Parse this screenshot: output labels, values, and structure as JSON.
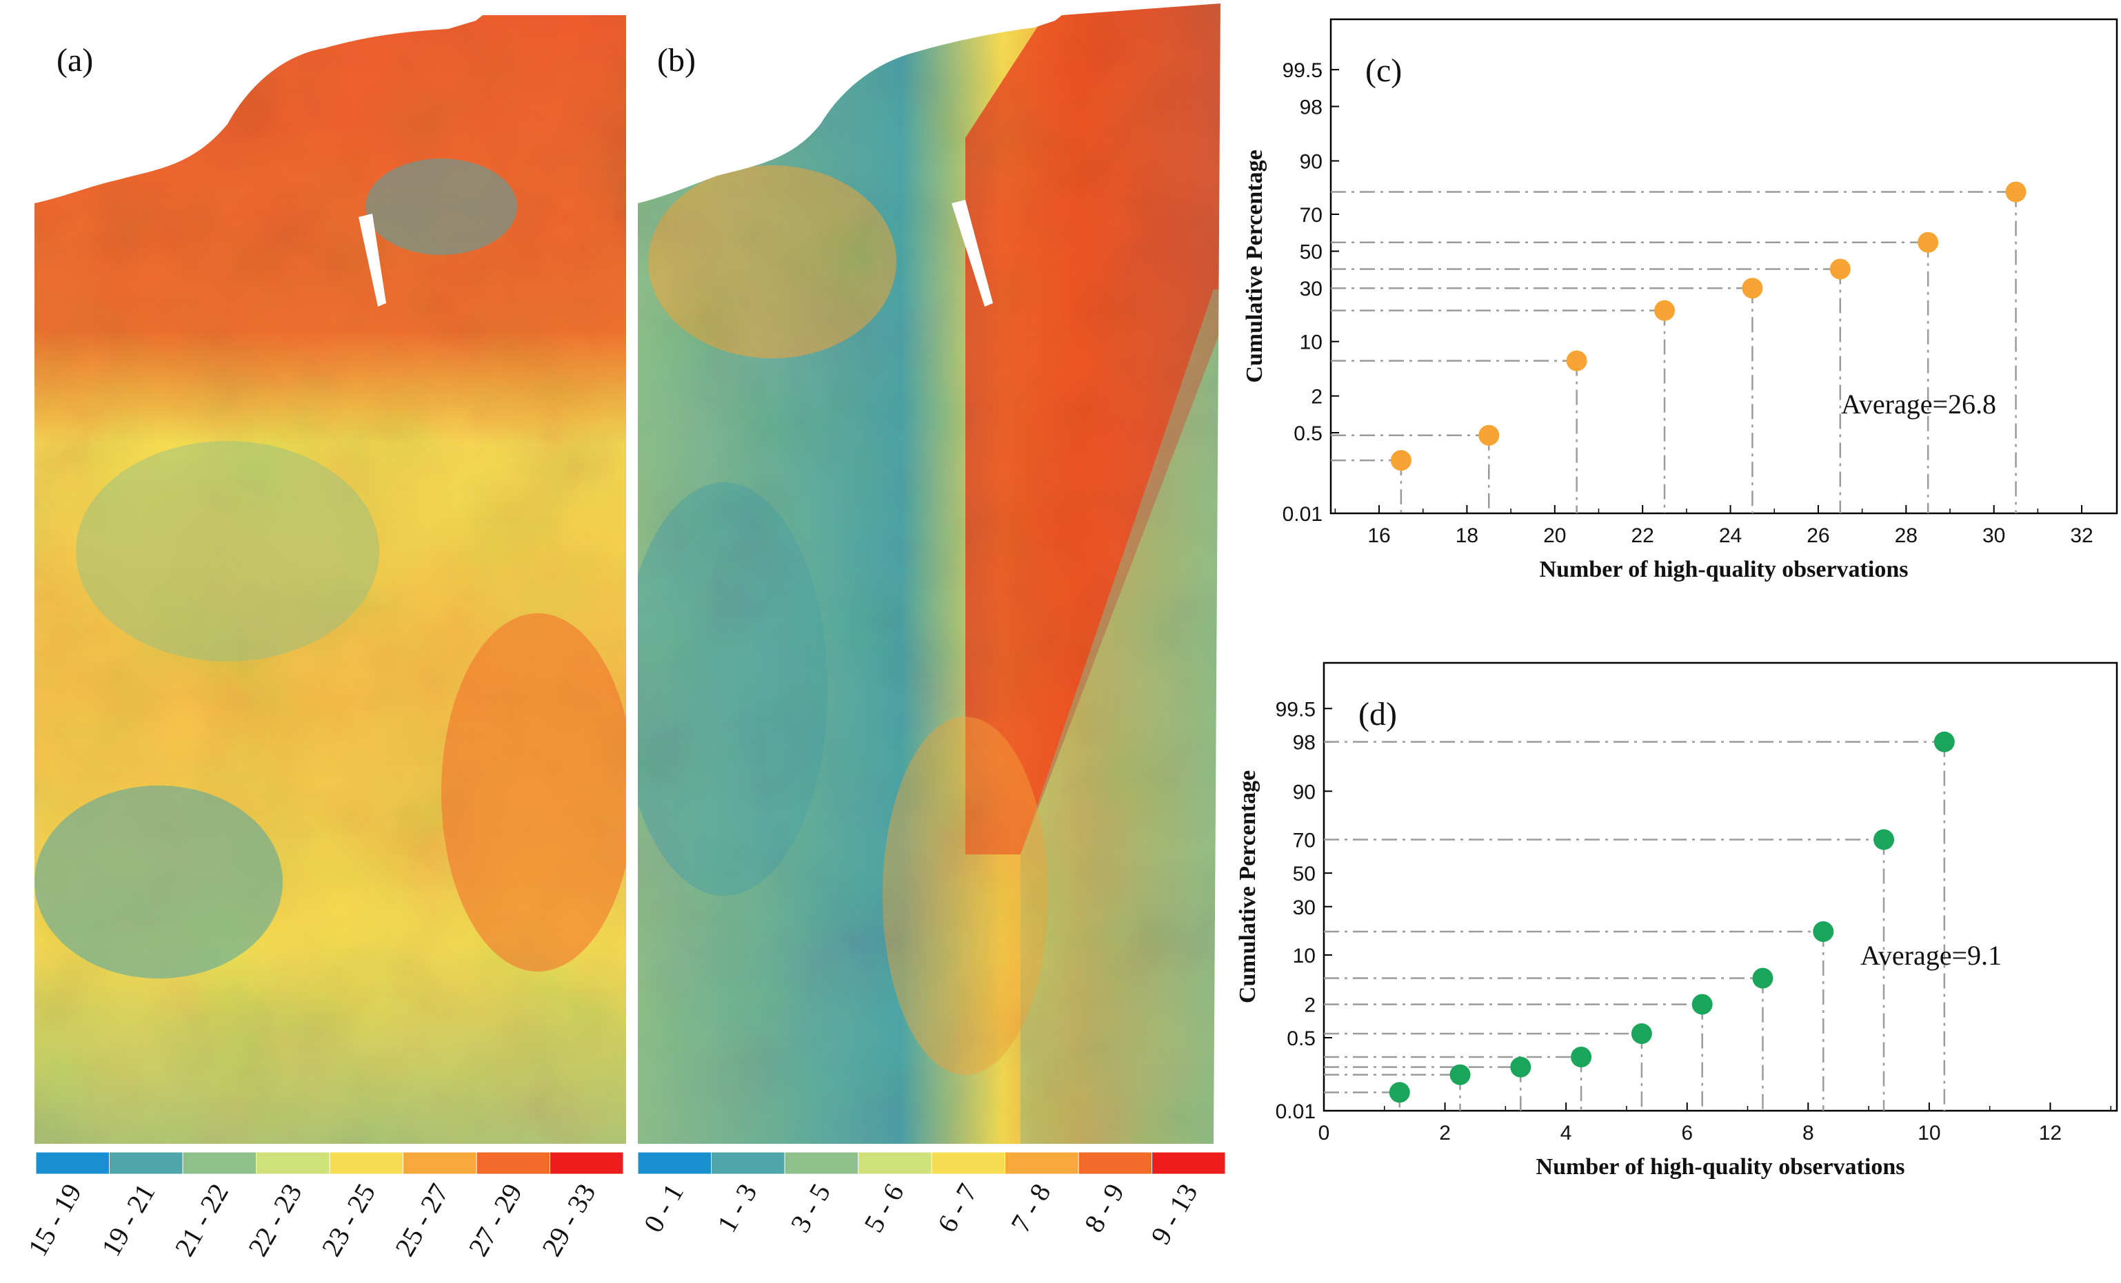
{
  "panels": {
    "a": {
      "label": "(a)",
      "legend": [
        "15 - 19",
        "19 - 21",
        "21 - 22",
        "22 - 23",
        "23 - 25",
        "25 - 27",
        "27 - 29",
        "29 - 33"
      ]
    },
    "b": {
      "label": "(b)",
      "legend": [
        "0 - 1",
        "1 - 3",
        "3 - 5",
        "5 - 6",
        "6 - 7",
        "7 - 8",
        "8 - 9",
        "9 - 13"
      ]
    }
  },
  "colors": {
    "ramp": [
      "#1a8fd0",
      "#4ea6a8",
      "#8fbf8a",
      "#cfe27a",
      "#f6dc52",
      "#f7a93b",
      "#f36b2a",
      "#ee1c1c"
    ],
    "orange_marker": "#f7a434",
    "green_marker": "#1aa55a",
    "guide": "#9a9a9a"
  },
  "chart_data": [
    {
      "type": "scatter",
      "panel_label": "(c)",
      "xlabel": "Number of high-quality observations",
      "ylabel": "Cumulative Percentage",
      "xlim": [
        14.9,
        32.8
      ],
      "xticks": [
        "16",
        "18",
        "20",
        "22",
        "24",
        "26",
        "28",
        "30",
        "32"
      ],
      "y_scale": "probability",
      "yticks": [
        "0.01",
        "0.5",
        "2",
        "10",
        "30",
        "50",
        "70",
        "90",
        "98",
        "99.5"
      ],
      "annotation": "Average=26.8",
      "marker_color": "#f7a434",
      "x": [
        16.5,
        18.5,
        20.5,
        22.5,
        24.5,
        26.5,
        28.5,
        30.5
      ],
      "y": [
        0.15,
        0.45,
        6,
        20,
        30,
        40,
        55,
        80
      ]
    },
    {
      "type": "scatter",
      "panel_label": "(d)",
      "xlabel": "Number of high-quality observations",
      "ylabel": "Cumulative Percentage",
      "xlim": [
        0,
        13.1
      ],
      "xticks": [
        "0",
        "2",
        "4",
        "6",
        "8",
        "10",
        "12"
      ],
      "y_scale": "probability",
      "yticks": [
        "0.01",
        "0.5",
        "2",
        "10",
        "30",
        "50",
        "70",
        "90",
        "98",
        "99.5"
      ],
      "annotation": "Average=9.1",
      "marker_color": "#1aa55a",
      "x": [
        1.25,
        2.25,
        3.25,
        4.25,
        5.25,
        6.25,
        7.25,
        8.25,
        9.25,
        10.25
      ],
      "y": [
        0.03,
        0.08,
        0.12,
        0.2,
        0.6,
        2,
        5,
        18,
        70,
        98
      ]
    }
  ]
}
